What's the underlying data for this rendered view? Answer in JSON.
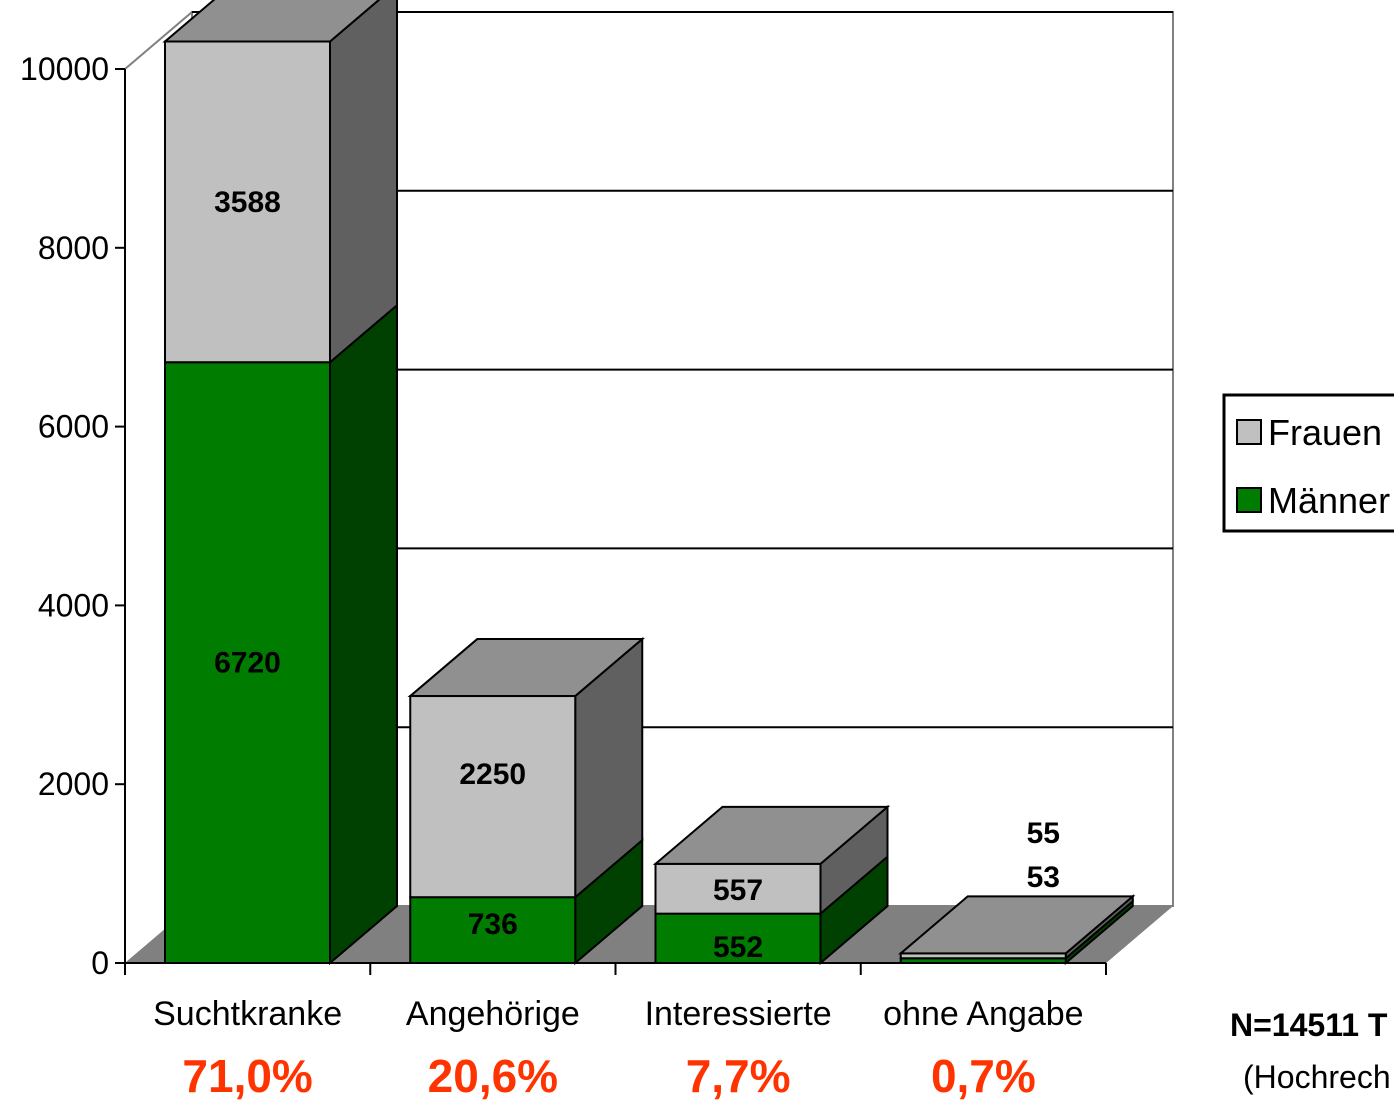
{
  "chart_data": {
    "type": "bar",
    "stacked": true,
    "three_d": true,
    "categories": [
      "Suchtkranke",
      "Angehörige",
      "Interessierte",
      "ohne Angabe"
    ],
    "percentages": [
      "71,0%",
      "20,6%",
      "7,7%",
      "0,7%"
    ],
    "series": [
      {
        "name": "Männer",
        "values": [
          6720,
          736,
          552,
          53
        ],
        "labels": [
          "6720",
          "736",
          "552",
          "53"
        ]
      },
      {
        "name": "Frauen",
        "values": [
          3588,
          2250,
          557,
          55
        ],
        "labels": [
          "3588",
          "2250",
          "557",
          "55"
        ]
      }
    ],
    "ylim": [
      0,
      10000
    ],
    "yticks": [
      0,
      2000,
      4000,
      6000,
      8000,
      10000
    ],
    "ytick_labels": [
      "0",
      "2000",
      "4000",
      "6000",
      "8000",
      "10000"
    ],
    "grid": true,
    "legend_position": "right",
    "legend_entries": [
      "Frauen",
      "Männer"
    ]
  },
  "colors": {
    "frauen_front": "#c0c0c0",
    "frauen_side": "#606060",
    "frauen_top": "#909090",
    "maenner_front": "#007c00",
    "maenner_side": "#004000",
    "floor": "#808080"
  },
  "note": {
    "line1": "N=14511 T",
    "line2": "(Hochrech"
  }
}
